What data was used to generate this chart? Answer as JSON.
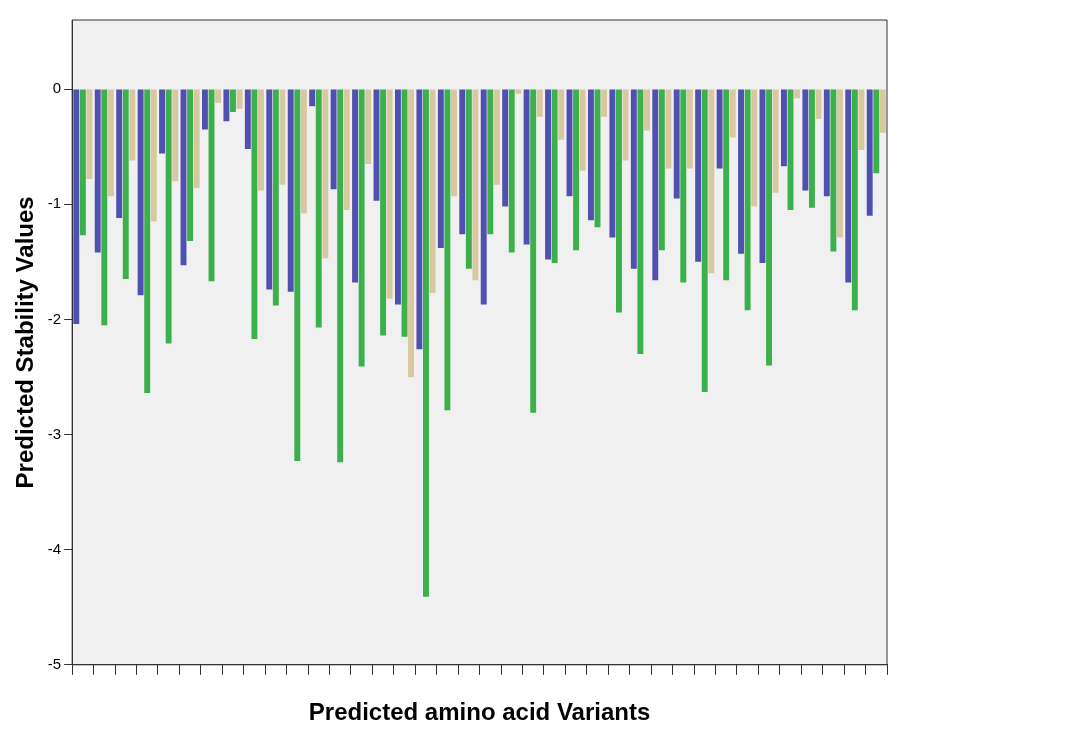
{
  "chart_data": {
    "type": "bar",
    "xlabel": "Predicted amino acid Variants",
    "ylabel": "Predicted Stability Values",
    "categories": [
      null,
      null,
      null,
      null,
      null,
      null,
      null,
      null,
      null,
      null,
      null,
      null,
      null,
      null,
      null,
      null,
      null,
      null,
      null,
      null,
      null,
      null,
      null,
      null,
      null,
      null,
      null,
      null,
      null,
      null,
      null,
      null,
      null,
      null,
      null,
      null,
      null,
      null
    ],
    "series": [
      {
        "color": "#5050b0",
        "values": [
          -2.04,
          -1.42,
          -1.12,
          -1.79,
          -0.56,
          -1.53,
          -0.35,
          -0.28,
          -0.52,
          -1.74,
          -1.76,
          -0.15,
          -0.87,
          -1.68,
          -0.97,
          -1.87,
          -2.26,
          -1.38,
          -1.26,
          -1.87,
          -1.02,
          -1.35,
          -1.48,
          -0.93,
          -1.14,
          -1.29,
          -1.56,
          -1.66,
          -0.95,
          -1.5,
          -0.69,
          -1.43,
          -1.51,
          -0.67,
          -0.88,
          -0.93,
          -1.68,
          -1.1
        ]
      },
      {
        "color": "#3cb04c",
        "values": [
          -1.27,
          -2.05,
          -1.65,
          -2.64,
          -2.21,
          -1.32,
          -1.67,
          -0.2,
          -2.17,
          -1.88,
          -3.23,
          -2.07,
          -3.24,
          -2.41,
          -2.14,
          -2.15,
          -4.41,
          -2.79,
          -1.56,
          -1.26,
          -1.42,
          -2.81,
          -1.51,
          -1.4,
          -1.2,
          -1.94,
          -2.3,
          -1.4,
          -1.68,
          -2.63,
          -1.66,
          -1.92,
          -2.4,
          -1.05,
          -1.03,
          -1.41,
          -1.92,
          -0.73
        ]
      },
      {
        "color": "#d8c8a0",
        "values": [
          -0.78,
          -0.93,
          -0.62,
          -1.15,
          -0.8,
          -0.86,
          -0.12,
          -0.17,
          -0.88,
          -0.83,
          -1.08,
          -1.47,
          -1.05,
          -0.65,
          -1.82,
          -2.5,
          -1.77,
          -0.93,
          -1.66,
          -0.83,
          -0.04,
          -0.24,
          -0.44,
          -0.71,
          -0.24,
          -0.62,
          -0.36,
          -0.69,
          -0.69,
          -1.6,
          -0.42,
          -1.02,
          -0.9,
          -0.08,
          -0.26,
          -1.29,
          -0.53,
          -0.38
        ]
      }
    ],
    "ylim": [
      -5,
      0.6
    ],
    "yticks": [
      0,
      -1,
      -2,
      -3,
      -4,
      -5
    ],
    "grid": false,
    "legend": false
  }
}
